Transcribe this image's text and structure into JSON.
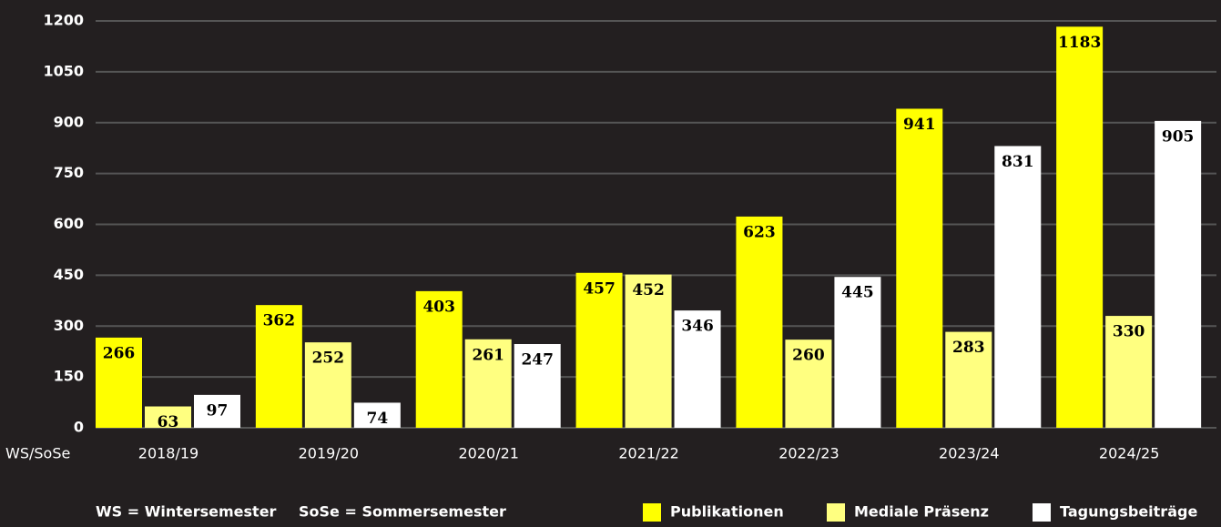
{
  "chart_data": {
    "type": "bar",
    "categories": [
      "2018/19",
      "2019/20",
      "2020/21",
      "2021/22",
      "2022/23",
      "2023/24",
      "2024/25"
    ],
    "x_label": "WS/SoSe",
    "series": [
      {
        "name": "Publikationen",
        "color": "#ffff00",
        "values": [
          266,
          362,
          403,
          457,
          623,
          941,
          1183
        ]
      },
      {
        "name": "Mediale Präsenz",
        "color": "#ffff80",
        "values": [
          63,
          252,
          261,
          452,
          260,
          283,
          330
        ]
      },
      {
        "name": "Tagungsbeiträge",
        "color": "#ffffff",
        "values": [
          97,
          74,
          247,
          346,
          445,
          831,
          905
        ]
      }
    ],
    "ylim": [
      0,
      1200
    ],
    "yticks": [
      0,
      150,
      300,
      450,
      600,
      750,
      900,
      1050,
      1200
    ],
    "grid": true,
    "notes": [
      "WS = Wintersemester",
      "SoSe = Sommersemester"
    ]
  }
}
